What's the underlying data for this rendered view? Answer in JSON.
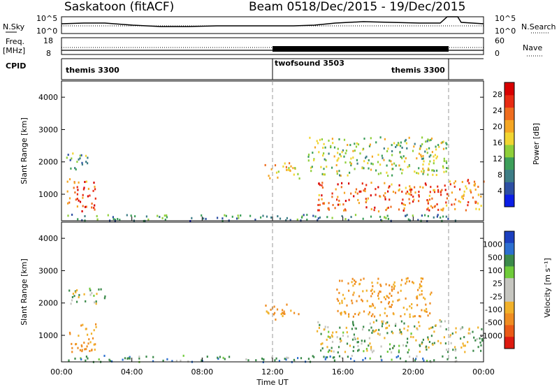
{
  "header": {
    "station": "Saskatoon (fitACF)",
    "beam": "Beam 05",
    "date_range": "18/Dec/2015 - 19/Dec/2015"
  },
  "panels": {
    "nsky": {
      "label": "N.Sky",
      "right_label": "N.Search",
      "left_ticks": [
        "10^5",
        "10^0"
      ],
      "right_ticks": [
        "10^5",
        "10^0"
      ]
    },
    "freq": {
      "label_line1": "Freq.",
      "label_line2": "[MHz]",
      "right_label": "Nave",
      "left_ticks": [
        "18",
        "8"
      ],
      "right_ticks": [
        "60",
        "0"
      ]
    },
    "cpid": {
      "label": "CPID",
      "segments": [
        {
          "name": "themis 3300",
          "start_hour": 0
        },
        {
          "name": "twofsound 3503",
          "start_hour": 12.0
        },
        {
          "name": "themis 3300",
          "start_hour": 22.0
        }
      ]
    }
  },
  "colors": {
    "power_scale": [
      "#0b1ee6",
      "#2d4fa3",
      "#3d7d86",
      "#3d9f5a",
      "#8fcf3a",
      "#f1d531",
      "#f5a623",
      "#ef6d1f",
      "#e82b13",
      "#d80000"
    ],
    "velocity_scale": [
      "#1b3fbf",
      "#2c6fd0",
      "#3b8a4a",
      "#6fcb3a",
      "#c6c6c0",
      "#c6c6c0",
      "#f1b12a",
      "#ef8d22",
      "#ea5a16",
      "#dd1a10"
    ]
  },
  "chart_data": [
    {
      "type": "heatmap",
      "name": "power",
      "ylabel": "Slant Range [km]",
      "yticks": [
        "1000",
        "2000",
        "3000",
        "4000"
      ],
      "ylim": [
        180,
        4500
      ],
      "x_ticks": [
        "00:00",
        "04:00",
        "08:00",
        "12:00",
        "16:00",
        "20:00",
        "00:00"
      ],
      "xlim_hours": [
        0,
        24
      ],
      "colorbar": {
        "label": "Power [dB]",
        "ticks": [
          "4",
          "8",
          "12",
          "16",
          "20",
          "24",
          "28"
        ],
        "range": [
          0,
          31
        ]
      },
      "scatter_regions": [
        {
          "t": [
            0.3,
            2.0
          ],
          "r": [
            500,
            1500
          ],
          "level": 24
        },
        {
          "t": [
            0.2,
            1.5
          ],
          "r": [
            1700,
            2300
          ],
          "level": 10
        },
        {
          "t": [
            0.3,
            22.5
          ],
          "r": [
            200,
            400
          ],
          "level": 9
        },
        {
          "t": [
            11.5,
            13.5
          ],
          "r": [
            1500,
            2000
          ],
          "level": 20
        },
        {
          "t": [
            14.5,
            22.0
          ],
          "r": [
            500,
            1400
          ],
          "level": 24
        },
        {
          "t": [
            14.0,
            22.0
          ],
          "r": [
            1600,
            2800
          ],
          "level": 14
        },
        {
          "t": [
            22.0,
            24.0
          ],
          "r": [
            500,
            1500
          ],
          "level": 22
        }
      ]
    },
    {
      "type": "heatmap",
      "name": "velocity",
      "ylabel": "Slant Range [km]",
      "yticks": [
        "1000",
        "2000",
        "3000",
        "4000"
      ],
      "ylim": [
        180,
        4500
      ],
      "x_ticks": [
        "00:00",
        "04:00",
        "08:00",
        "12:00",
        "16:00",
        "20:00",
        "00:00"
      ],
      "xlim_hours": [
        0,
        24
      ],
      "xlabel": "Time UT",
      "colorbar": {
        "label": "Velocity [m s⁻¹]",
        "ticks": [
          "1000",
          "500",
          "100",
          "25",
          "-25",
          "-100",
          "-500",
          "-1000"
        ]
      },
      "scatter_regions": [
        {
          "t": [
            0.3,
            2.0
          ],
          "r": [
            500,
            1400
          ],
          "v": -300
        },
        {
          "t": [
            0.3,
            2.5
          ],
          "r": [
            2000,
            2500
          ],
          "v": 0
        },
        {
          "t": [
            0.3,
            22.5
          ],
          "r": [
            200,
            400
          ],
          "v": 150
        },
        {
          "t": [
            11.5,
            13.5
          ],
          "r": [
            1500,
            2000
          ],
          "v": -300
        },
        {
          "t": [
            14.5,
            22.0
          ],
          "r": [
            500,
            1500
          ],
          "v": 0
        },
        {
          "t": [
            15.5,
            21.0
          ],
          "r": [
            1600,
            2800
          ],
          "v": -300
        },
        {
          "t": [
            22.0,
            24.0
          ],
          "r": [
            500,
            1300
          ],
          "v": 0
        }
      ]
    }
  ]
}
